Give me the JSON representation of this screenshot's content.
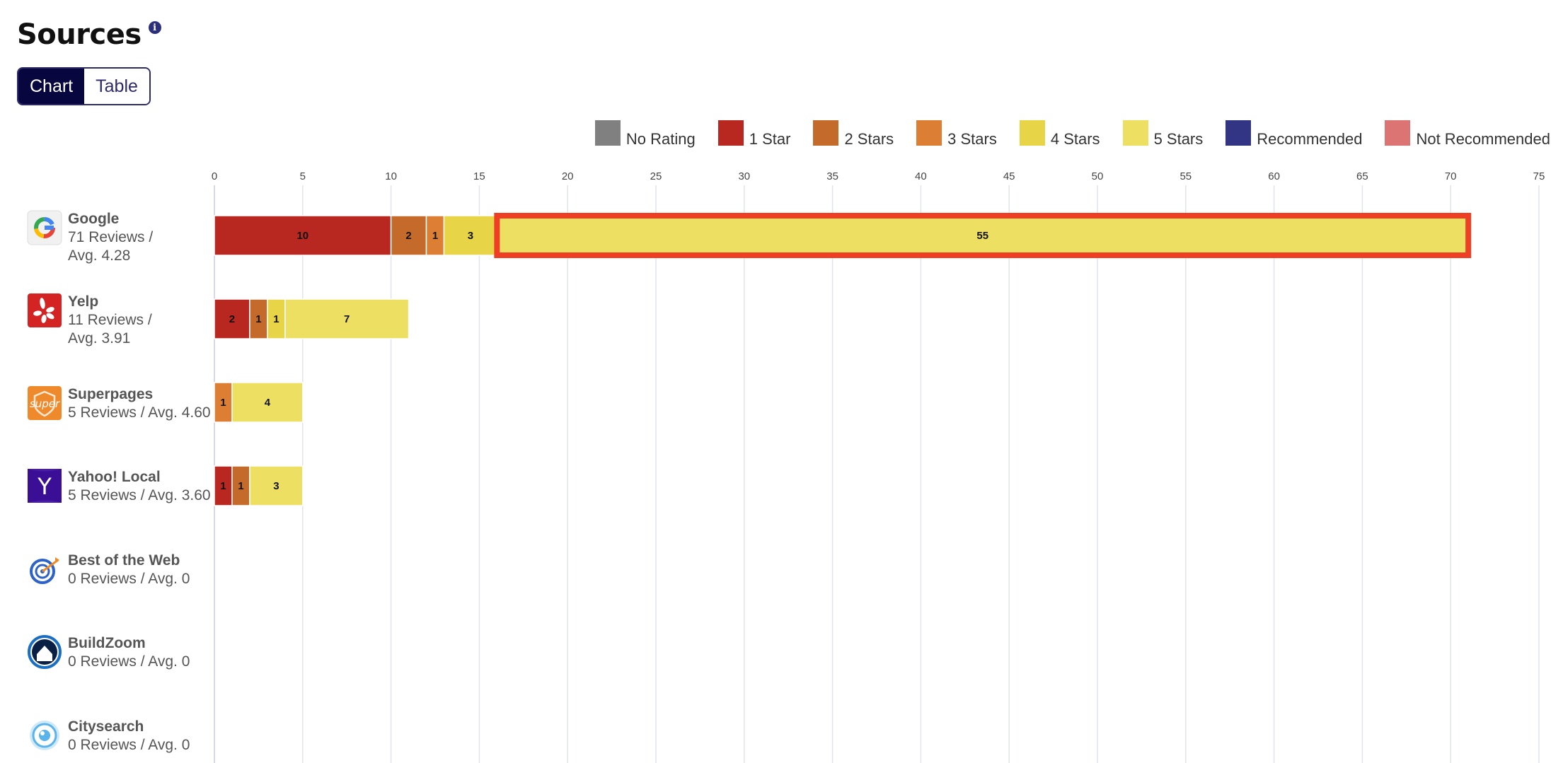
{
  "header": {
    "title": "Sources",
    "info_icon": "info-icon"
  },
  "view_toggle": {
    "chart_label": "Chart",
    "table_label": "Table",
    "active": "Chart"
  },
  "legend": [
    {
      "label": "No Rating",
      "color": "#808080"
    },
    {
      "label": "1 Star",
      "color": "#b82720"
    },
    {
      "label": "2 Stars",
      "color": "#c46a2a"
    },
    {
      "label": "3 Stars",
      "color": "#dc7e34"
    },
    {
      "label": "4 Stars",
      "color": "#e7d447"
    },
    {
      "label": "5 Stars",
      "color": "#eddf62"
    },
    {
      "label": "Recommended",
      "color": "#323584"
    },
    {
      "label": "Not Recommended",
      "color": "#dc7474"
    }
  ],
  "chart_data": {
    "type": "bar",
    "orientation": "horizontal",
    "stacked": true,
    "x_ticks": [
      0,
      5,
      10,
      15,
      20,
      25,
      30,
      35,
      40,
      45,
      50,
      55,
      60,
      65,
      70,
      75
    ],
    "xlim": [
      0,
      75
    ],
    "grid": true,
    "highlight": {
      "source": "Google",
      "series": "5 Stars"
    },
    "categories": [
      "Google",
      "Yelp",
      "Superpages",
      "Yahoo! Local",
      "Best of the Web",
      "BuildZoom",
      "Citysearch"
    ],
    "series": [
      {
        "name": "No Rating",
        "values": [
          0,
          0,
          0,
          0,
          0,
          0,
          0
        ]
      },
      {
        "name": "1 Star",
        "values": [
          10,
          2,
          0,
          1,
          0,
          0,
          0
        ]
      },
      {
        "name": "2 Stars",
        "values": [
          2,
          1,
          0,
          1,
          0,
          0,
          0
        ]
      },
      {
        "name": "3 Stars",
        "values": [
          1,
          0,
          1,
          0,
          0,
          0,
          0
        ]
      },
      {
        "name": "4 Stars",
        "values": [
          3,
          1,
          0,
          0,
          0,
          0,
          0
        ]
      },
      {
        "name": "5 Stars",
        "values": [
          55,
          7,
          4,
          3,
          0,
          0,
          0
        ]
      },
      {
        "name": "Recommended",
        "values": [
          0,
          0,
          0,
          0,
          0,
          0,
          0
        ]
      },
      {
        "name": "Not Recommended",
        "values": [
          0,
          0,
          0,
          0,
          0,
          0,
          0
        ]
      }
    ]
  },
  "sources": [
    {
      "name": "Google",
      "stats": "71 Reviews / Avg. 4.28",
      "icon": "google-logo-icon"
    },
    {
      "name": "Yelp",
      "stats": "11 Reviews / Avg. 3.91",
      "icon": "yelp-logo-icon"
    },
    {
      "name": "Superpages",
      "stats": "5 Reviews / Avg. 4.60",
      "icon": "superpages-logo-icon"
    },
    {
      "name": "Yahoo! Local",
      "stats": "5 Reviews / Avg. 3.60",
      "icon": "yahoo-logo-icon"
    },
    {
      "name": "Best of the Web",
      "stats": "0 Reviews / Avg. 0",
      "icon": "bestoftheweb-logo-icon"
    },
    {
      "name": "BuildZoom",
      "stats": "0 Reviews / Avg. 0",
      "icon": "buildzoom-logo-icon"
    },
    {
      "name": "Citysearch",
      "stats": "0 Reviews / Avg. 0",
      "icon": "citysearch-logo-icon"
    }
  ]
}
